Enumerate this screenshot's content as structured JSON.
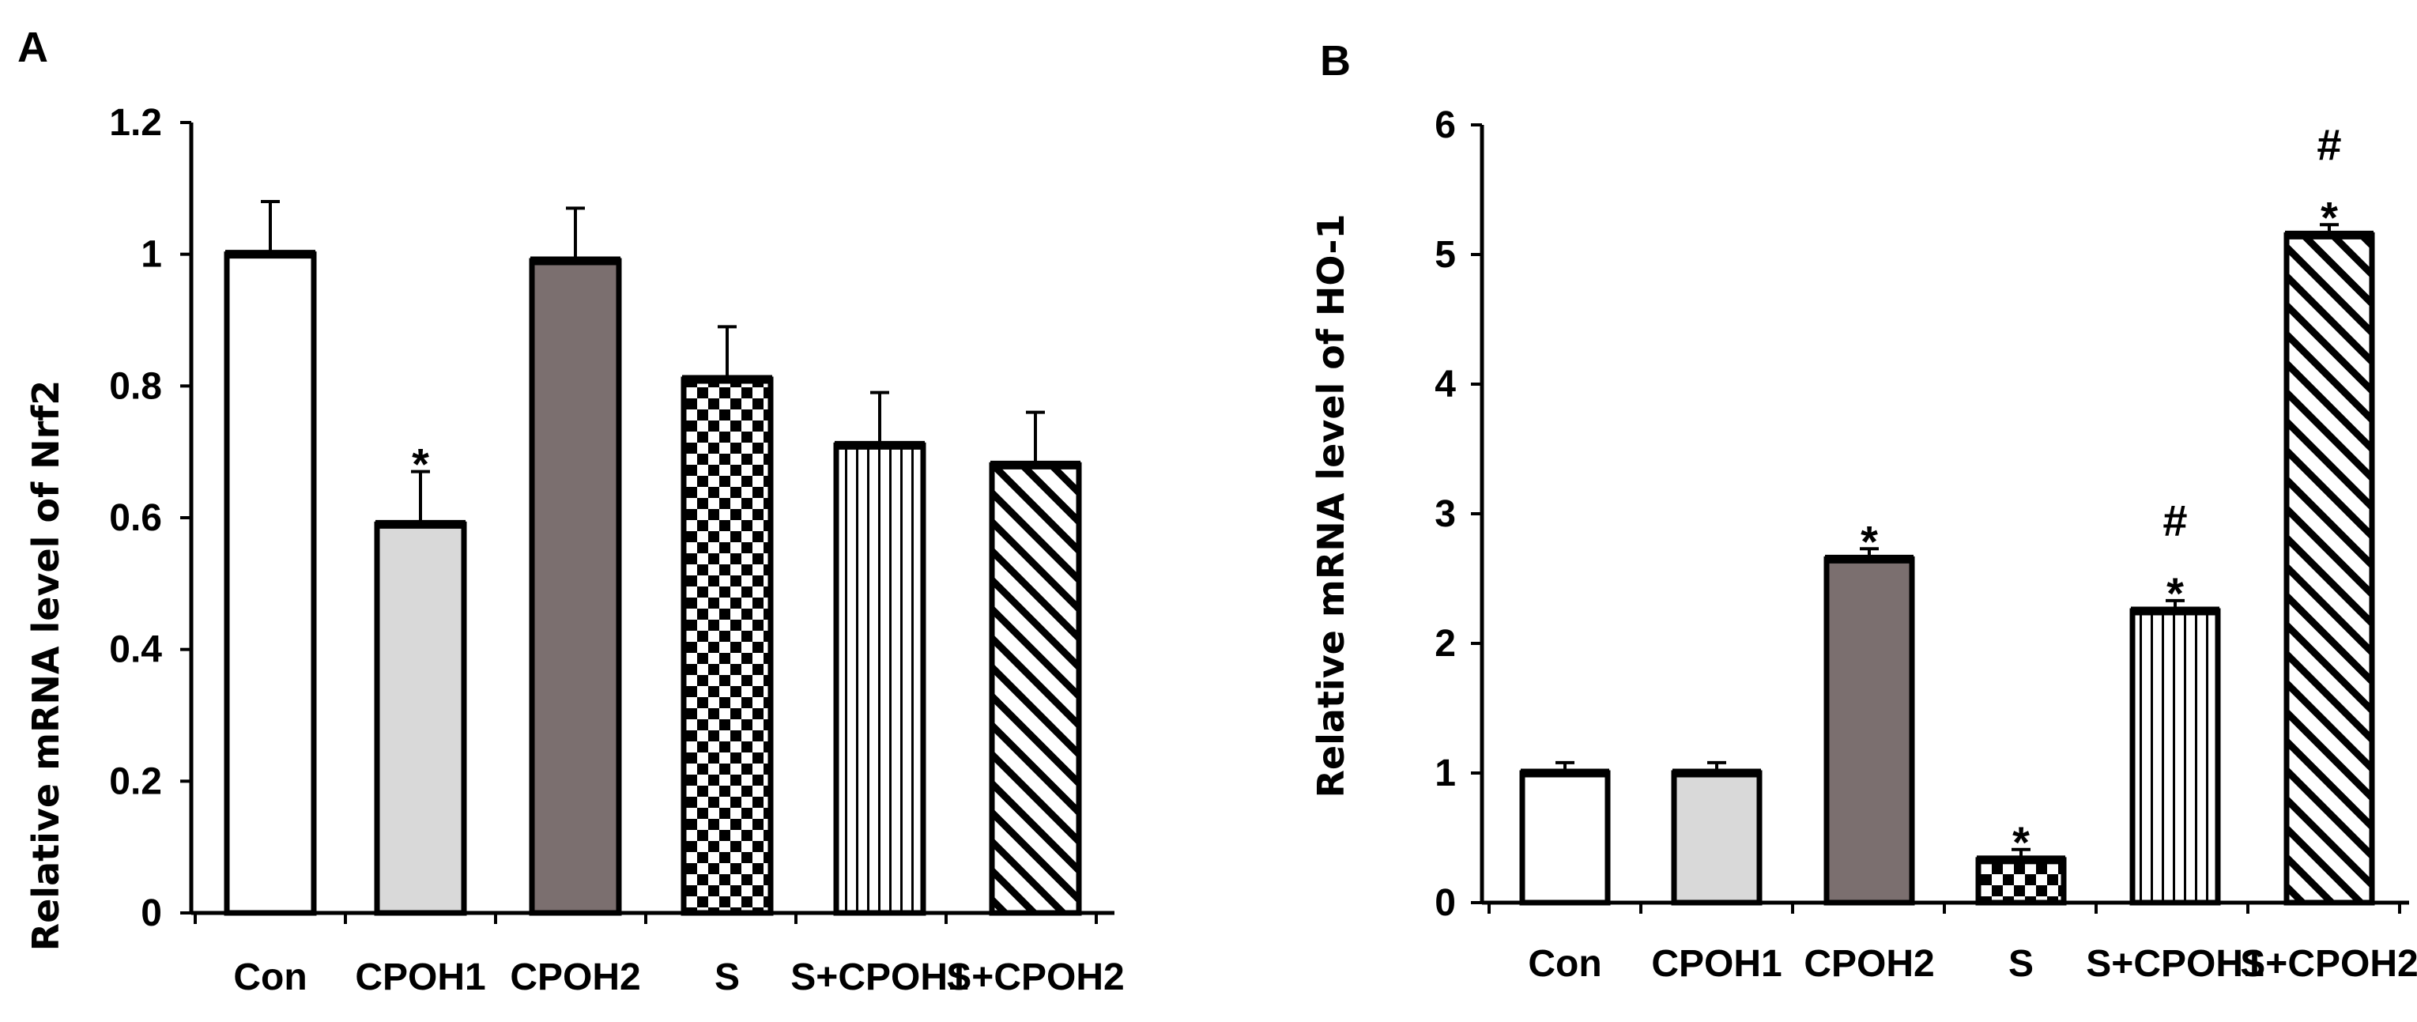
{
  "chart_data": [
    {
      "panel": "A",
      "type": "bar",
      "title": "",
      "xlabel": "",
      "ylabel": "Relative mRNA level of Nrf2",
      "ylim": [
        0,
        1.2
      ],
      "yticks": [
        0,
        0.2,
        0.4,
        0.6,
        0.8,
        1,
        1.2
      ],
      "ytick_labels": [
        "0",
        "0.2",
        "0.4",
        "0.6",
        "0.8",
        "1",
        "1.2"
      ],
      "categories": [
        "Con",
        "CPOH1",
        "CPOH2",
        "S",
        "S+CPOH1",
        "S+CPOH2"
      ],
      "values": [
        1.0,
        0.59,
        0.99,
        0.81,
        0.71,
        0.68
      ],
      "errors": [
        0.08,
        0.08,
        0.08,
        0.08,
        0.08,
        0.08
      ],
      "patterns": [
        "white",
        "lightgray",
        "darkgray",
        "checker",
        "vlines",
        "diag"
      ],
      "annotations": [
        [],
        [
          "*"
        ],
        [],
        [],
        [],
        []
      ],
      "grid": false
    },
    {
      "panel": "B",
      "type": "bar",
      "title": "",
      "xlabel": "",
      "ylabel": "Relative mRNA level of HO-1",
      "ylim": [
        0,
        6
      ],
      "yticks": [
        0,
        1,
        2,
        3,
        4,
        5,
        6
      ],
      "ytick_labels": [
        "0",
        "1",
        "2",
        "3",
        "4",
        "5",
        "6"
      ],
      "categories": [
        "Con",
        "CPOH1",
        "CPOH2",
        "S",
        "S+CPOH1",
        "S+CPOH2"
      ],
      "values": [
        1.0,
        1.0,
        2.65,
        0.33,
        2.25,
        5.15
      ],
      "errors": [
        0.08,
        0.08,
        0.08,
        0.08,
        0.08,
        0.08
      ],
      "patterns": [
        "white",
        "lightgray",
        "darkgray",
        "checker",
        "vlines",
        "diag"
      ],
      "annotations": [
        [],
        [],
        [
          "*"
        ],
        [
          "*"
        ],
        [
          "*",
          "#"
        ],
        [
          "*",
          "#"
        ]
      ],
      "grid": false
    }
  ],
  "colors": {
    "white": "#ffffff",
    "lightgray": "#d9d9d9",
    "darkgray": "#7b6f6f",
    "ink": "#000000"
  }
}
